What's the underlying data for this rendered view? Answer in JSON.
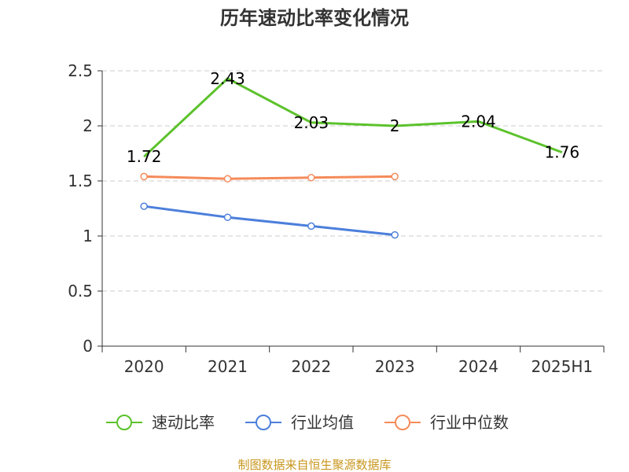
{
  "chart_data": {
    "type": "line",
    "title": "历年速动比率变化情况",
    "categories": [
      "2020",
      "2021",
      "2022",
      "2023",
      "2024",
      "2025H1"
    ],
    "ylim": [
      0,
      2.5
    ],
    "yticks": [
      "0",
      "0.5",
      "1",
      "1.5",
      "2",
      "2.5"
    ],
    "grid": true,
    "legend_position": "bottom",
    "series": [
      {
        "name": "速动比率",
        "color": "#5cc22c",
        "values": [
          1.72,
          2.43,
          2.03,
          2,
          2.04,
          1.76
        ],
        "labels": [
          "1.72",
          "2.43",
          "2.03",
          "2",
          "2.04",
          "1.76"
        ],
        "show_labels": true,
        "show_markers": false
      },
      {
        "name": "行业均值",
        "color": "#4c7fdb",
        "values": [
          1.27,
          1.17,
          1.09,
          1.01,
          null,
          null
        ],
        "show_labels": false,
        "show_markers": true
      },
      {
        "name": "行业中位数",
        "color": "#f58b5a",
        "values": [
          1.54,
          1.52,
          1.53,
          1.54,
          null,
          null
        ],
        "show_labels": false,
        "show_markers": true
      }
    ]
  },
  "source": {
    "text": "制图数据来自恒生聚源数据库",
    "color": "#c8961e"
  }
}
